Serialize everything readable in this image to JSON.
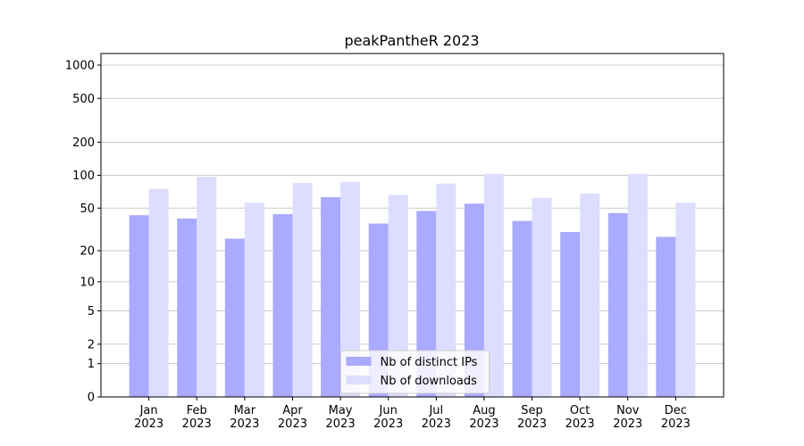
{
  "chart_data": {
    "type": "bar",
    "title": "peakPantheR 2023",
    "categories": [
      "Jan\n2023",
      "Feb\n2023",
      "Mar\n2023",
      "Apr\n2023",
      "May\n2023",
      "Jun\n2023",
      "Jul\n2023",
      "Aug\n2023",
      "Sep\n2023",
      "Oct\n2023",
      "Nov\n2023",
      "Dec\n2023"
    ],
    "series": [
      {
        "name": "Nb of distinct IPs",
        "color": "#aaaaff",
        "values": [
          43,
          40,
          26,
          44,
          63,
          36,
          47,
          55,
          38,
          30,
          45,
          27
        ]
      },
      {
        "name": "Nb of downloads",
        "color": "#ddddff",
        "values": [
          75,
          97,
          56,
          85,
          87,
          66,
          84,
          103,
          62,
          68,
          103,
          56
        ]
      }
    ],
    "yscale": "log1p",
    "ylim": [
      0,
      1273
    ],
    "yticks": [
      0,
      1,
      2,
      5,
      10,
      20,
      50,
      100,
      200,
      500,
      1000
    ],
    "grid": true,
    "legend": "lower center"
  }
}
